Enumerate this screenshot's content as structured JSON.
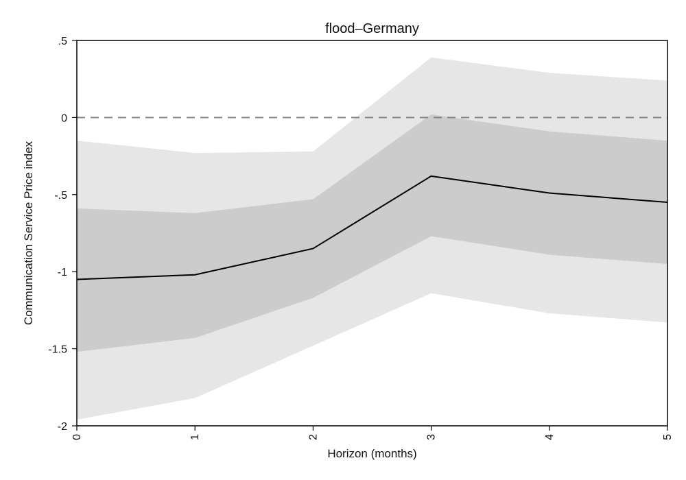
{
  "chart_data": {
    "type": "line",
    "title": "flood–Germany",
    "xlabel": "Horizon (months)",
    "ylabel": "Communication Service Price index",
    "xlim": [
      0,
      5
    ],
    "ylim": [
      -2,
      0.5
    ],
    "x_ticks": [
      0,
      1,
      2,
      3,
      4,
      5
    ],
    "x_tick_labels": [
      "0",
      "1",
      "2",
      "3",
      "4",
      "5"
    ],
    "y_ticks": [
      0.5,
      0,
      -0.5,
      -1,
      -1.5,
      -2
    ],
    "y_tick_labels": [
      ".5",
      "0",
      "-.5",
      "-1",
      "-1.5",
      "-2"
    ],
    "x": [
      0,
      1,
      2,
      3,
      4,
      5
    ],
    "series": [
      {
        "values": [
          -1.05,
          -1.02,
          -0.85,
          -0.38,
          -0.49,
          -0.55
        ]
      }
    ],
    "bands": [
      {
        "lower": [
          -1.96,
          -1.82,
          -1.48,
          -1.14,
          -1.27,
          -1.33
        ],
        "upper": [
          -0.15,
          -0.23,
          -0.22,
          0.39,
          0.29,
          0.24
        ],
        "color": "#e6e6e6"
      },
      {
        "lower": [
          -1.52,
          -1.43,
          -1.17,
          -0.77,
          -0.89,
          -0.95
        ],
        "upper": [
          -0.59,
          -0.62,
          -0.53,
          0.02,
          -0.09,
          -0.15
        ],
        "color": "#cccccc"
      }
    ],
    "reference_line": {
      "y": 0,
      "style": "dashed",
      "color": "#808080"
    },
    "line_color": "#000000",
    "grid": false,
    "x_tick_rotation": "vertical"
  }
}
